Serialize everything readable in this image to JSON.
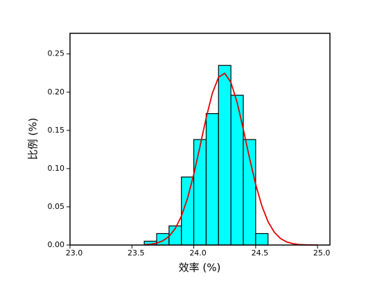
{
  "chart_data": {
    "type": "histogram",
    "x_label": "效率 (%)",
    "y_label": "比例 (%)",
    "bins": [
      23.6,
      23.7,
      23.8,
      23.9,
      24.0,
      24.1,
      24.2,
      24.3,
      24.4,
      24.5,
      24.6
    ],
    "values": [
      0.005,
      0.015,
      0.025,
      0.089,
      0.138,
      0.172,
      0.235,
      0.196,
      0.138,
      0.015
    ],
    "color": "#00ffff",
    "edge_color": "#000000",
    "curve": {
      "color": "#e00000",
      "x": [
        23.6,
        23.65,
        23.7,
        23.75,
        23.8,
        23.85,
        23.9,
        23.95,
        24.0,
        24.05,
        24.1,
        24.15,
        24.2,
        24.25,
        24.3,
        24.35,
        24.4,
        24.45,
        24.5,
        24.55,
        24.6,
        24.65,
        24.7,
        24.75,
        24.8,
        24.85,
        24.9,
        24.95,
        25.0
      ],
      "values": [
        0.0004,
        0.001,
        0.0025,
        0.0055,
        0.0113,
        0.0215,
        0.0378,
        0.0614,
        0.0925,
        0.1289,
        0.1664,
        0.1985,
        0.2196,
        0.2247,
        0.2128,
        0.1867,
        0.1516,
        0.1139,
        0.0793,
        0.0511,
        0.0305,
        0.0168,
        0.0086,
        0.0041,
        0.0018,
        0.0007,
        0.0003,
        0.0001,
        0.0
      ]
    },
    "xlim": [
      23.0,
      25.1
    ],
    "ylim": [
      0,
      0.277
    ],
    "xticks": [
      {
        "value": 23.0,
        "label": "23.0"
      },
      {
        "value": 23.5,
        "label": "23.5"
      },
      {
        "value": 24.0,
        "label": "24.0"
      },
      {
        "value": 24.5,
        "label": "24.5"
      },
      {
        "value": 25.0,
        "label": "25.0"
      }
    ],
    "yticks": [
      {
        "value": 0,
        "label": "0.00"
      },
      {
        "value": 0.05,
        "label": "0.05"
      },
      {
        "value": 0.1,
        "label": "0.10"
      },
      {
        "value": 0.15,
        "label": "0.15"
      },
      {
        "value": 0.2,
        "label": "0.20"
      },
      {
        "value": 0.25,
        "label": "0.25"
      }
    ]
  }
}
